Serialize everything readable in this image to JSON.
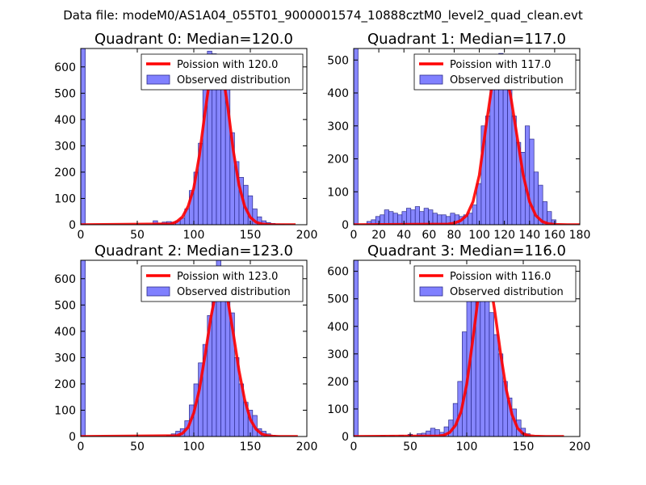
{
  "figure": {
    "suptitle": "Data file: modeM0/AS1A04_055T01_9000001574_10888cztM0_level2_quad_clean.evt",
    "colors": {
      "bar_fill": "#8080ff",
      "bar_edge": "#2a2a8a",
      "curve": "#ff0000",
      "frame": "#000000"
    }
  },
  "chart_data": [
    {
      "type": "bar",
      "title": "Quadrant 0: Median=120.0",
      "xlim": [
        0,
        200
      ],
      "ylim": [
        0,
        670
      ],
      "xticks": [
        0,
        50,
        100,
        150,
        200
      ],
      "yticks": [
        0,
        100,
        200,
        300,
        400,
        500,
        600
      ],
      "legend": {
        "placement": "upper right",
        "curve_label": "Poission with 120.0",
        "bar_label": "Observed distribution"
      },
      "bin_width": 4.0,
      "bar_x": [
        0,
        64,
        68,
        72,
        76,
        80,
        84,
        88,
        92,
        96,
        100,
        104,
        108,
        112,
        116,
        120,
        124,
        128,
        132,
        136,
        140,
        144,
        148,
        152,
        156,
        160,
        164,
        168,
        172,
        176,
        180,
        184
      ],
      "bar_values": [
        670,
        15,
        5,
        10,
        12,
        10,
        15,
        25,
        60,
        130,
        200,
        310,
        560,
        660,
        650,
        630,
        610,
        560,
        350,
        240,
        180,
        150,
        110,
        60,
        30,
        15,
        8,
        5,
        3,
        2,
        1,
        1
      ],
      "curve": {
        "label": "Poission with 120.0",
        "x": [
          0,
          80,
          85,
          90,
          95,
          100,
          105,
          110,
          115,
          120,
          125,
          130,
          135,
          140,
          145,
          150,
          155,
          160,
          165,
          170,
          190
        ],
        "y": [
          0,
          3,
          12,
          30,
          70,
          140,
          265,
          430,
          580,
          640,
          590,
          450,
          280,
          150,
          70,
          28,
          10,
          3,
          1,
          0,
          0
        ]
      }
    },
    {
      "type": "bar",
      "title": "Quadrant 1: Median=117.0",
      "xlim": [
        0,
        180
      ],
      "ylim": [
        0,
        535
      ],
      "xticks": [
        0,
        20,
        40,
        60,
        80,
        100,
        120,
        140,
        160,
        180
      ],
      "yticks": [
        0,
        100,
        200,
        300,
        400,
        500
      ],
      "legend": {
        "placement": "upper right",
        "curve_label": "Poission with 117.0",
        "bar_label": "Observed distribution"
      },
      "bin_width": 3.5,
      "bar_x": [
        0,
        10.5,
        14,
        17.5,
        21,
        24.5,
        28,
        31.5,
        35,
        38.5,
        42,
        45.5,
        49,
        52.5,
        56,
        59.5,
        63,
        66.5,
        70,
        73.5,
        77,
        80.5,
        84,
        87.5,
        91,
        94.5,
        98,
        101.5,
        105,
        108.5,
        112,
        115.5,
        119,
        122.5,
        126,
        129.5,
        133,
        136.5,
        140,
        143.5,
        147,
        150.5,
        154,
        157.5
      ],
      "bar_values": [
        535,
        10,
        15,
        25,
        30,
        45,
        40,
        35,
        30,
        40,
        50,
        45,
        55,
        40,
        50,
        45,
        35,
        30,
        30,
        25,
        35,
        30,
        25,
        30,
        35,
        60,
        125,
        300,
        330,
        440,
        420,
        520,
        470,
        460,
        330,
        250,
        220,
        300,
        260,
        160,
        120,
        70,
        40,
        15
      ],
      "curve": {
        "label": "Poission with 117.0",
        "x": [
          0,
          75,
          80,
          85,
          90,
          95,
          100,
          105,
          110,
          115,
          120,
          125,
          130,
          135,
          140,
          145,
          150,
          155,
          160,
          170,
          180
        ],
        "y": [
          0,
          2,
          5,
          12,
          28,
          70,
          150,
          290,
          420,
          500,
          480,
          390,
          270,
          150,
          70,
          28,
          10,
          3,
          1,
          0,
          0
        ]
      }
    },
    {
      "type": "bar",
      "title": "Quadrant 2: Median=123.0",
      "xlim": [
        0,
        200
      ],
      "ylim": [
        0,
        670
      ],
      "xticks": [
        0,
        50,
        100,
        150,
        200
      ],
      "yticks": [
        0,
        100,
        200,
        300,
        400,
        500,
        600
      ],
      "legend": {
        "placement": "upper right",
        "curve_label": "Poission with 123.0",
        "bar_label": "Observed distribution"
      },
      "bin_width": 4.0,
      "bar_x": [
        0,
        76,
        80,
        84,
        88,
        92,
        96,
        100,
        104,
        108,
        112,
        116,
        120,
        124,
        128,
        132,
        136,
        140,
        144,
        148,
        152,
        156,
        160,
        164,
        168,
        172
      ],
      "bar_values": [
        670,
        5,
        10,
        20,
        30,
        60,
        120,
        200,
        280,
        350,
        460,
        600,
        670,
        560,
        520,
        470,
        300,
        200,
        130,
        100,
        80,
        30,
        20,
        10,
        5,
        2
      ],
      "curve": {
        "label": "Poission with 123.0",
        "x": [
          0,
          85,
          90,
          95,
          100,
          105,
          110,
          115,
          120,
          125,
          130,
          135,
          140,
          145,
          150,
          155,
          160,
          165,
          170,
          175,
          192
        ],
        "y": [
          0,
          3,
          12,
          35,
          90,
          180,
          310,
          450,
          560,
          590,
          520,
          390,
          250,
          140,
          65,
          28,
          10,
          3,
          1,
          0,
          0
        ]
      }
    },
    {
      "type": "bar",
      "title": "Quadrant 3: Median=116.0",
      "xlim": [
        0,
        200
      ],
      "ylim": [
        0,
        640
      ],
      "xticks": [
        0,
        50,
        100,
        150,
        200
      ],
      "yticks": [
        0,
        100,
        200,
        300,
        400,
        500,
        600
      ],
      "legend": {
        "placement": "upper right",
        "curve_label": "Poission with 116.0",
        "bar_label": "Observed distribution"
      },
      "bin_width": 4.0,
      "bar_x": [
        0,
        24,
        32,
        40,
        48,
        56,
        60,
        64,
        68,
        72,
        76,
        80,
        84,
        88,
        92,
        96,
        100,
        104,
        108,
        112,
        116,
        120,
        124,
        128,
        132,
        136,
        140,
        144,
        148,
        152
      ],
      "bar_values": [
        640,
        3,
        3,
        5,
        8,
        10,
        12,
        20,
        30,
        25,
        15,
        35,
        60,
        120,
        200,
        380,
        580,
        600,
        530,
        580,
        500,
        450,
        370,
        300,
        200,
        140,
        100,
        60,
        30,
        10
      ],
      "curve": {
        "label": "Poission with 116.0",
        "x": [
          0,
          75,
          80,
          85,
          90,
          95,
          100,
          105,
          110,
          115,
          120,
          125,
          130,
          135,
          140,
          145,
          150,
          155,
          160,
          170,
          186
        ],
        "y": [
          0,
          2,
          5,
          15,
          40,
          90,
          190,
          340,
          500,
          610,
          580,
          450,
          300,
          170,
          80,
          30,
          10,
          3,
          1,
          0,
          0
        ]
      }
    }
  ]
}
